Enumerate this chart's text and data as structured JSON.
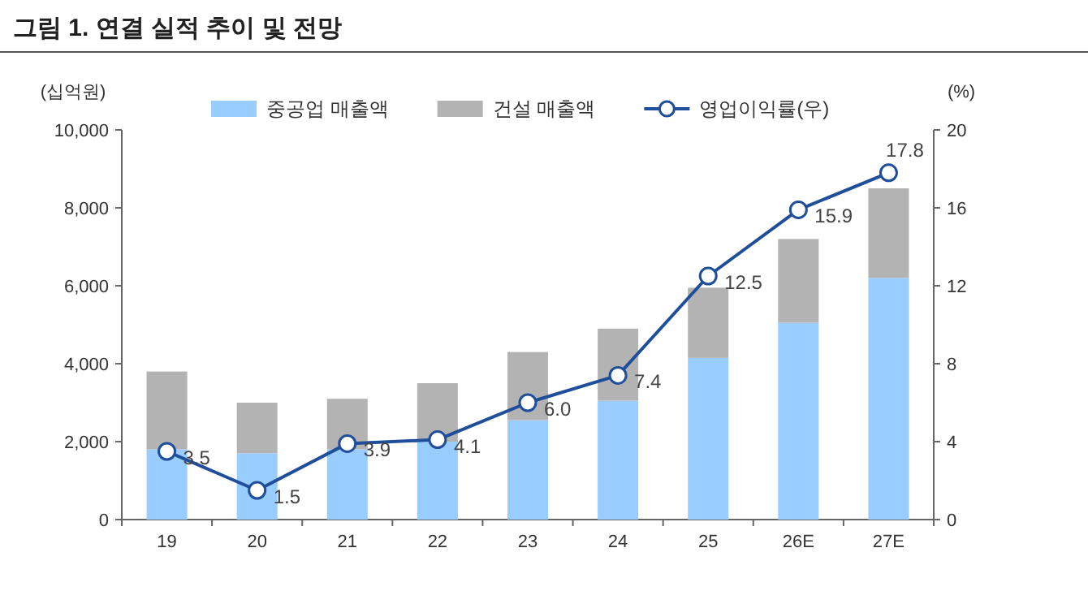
{
  "chart_data": {
    "type": "bar",
    "title": "그림 1. 연결 실적 추이 및 전망",
    "ylabel": "(십억원)",
    "y2label": "(%)",
    "categories": [
      "19",
      "20",
      "21",
      "22",
      "23",
      "24",
      "25",
      "26E",
      "27E"
    ],
    "stacked": true,
    "legend": "top",
    "series": [
      {
        "name": "중공업 매출액",
        "color": "#99ccff",
        "values": [
          1800,
          1700,
          1800,
          2000,
          2550,
          3050,
          4150,
          5050,
          6200
        ]
      },
      {
        "name": "건설 매출액",
        "color": "#b3b3b3",
        "values": [
          2000,
          1300,
          1300,
          1500,
          1750,
          1850,
          1800,
          2150,
          2300
        ]
      },
      {
        "name": "영업이익률(우)",
        "type": "line",
        "axis": "y2",
        "color": "#1f4e9a",
        "marker": "circle",
        "values": [
          3.5,
          1.5,
          3.9,
          4.1,
          6.0,
          7.4,
          12.5,
          15.9,
          17.8
        ],
        "value_labels": [
          "3.5",
          "1.5",
          "3.9",
          "4.1",
          "6.0",
          "7.4",
          "12.5",
          "15.9",
          "17.8"
        ]
      }
    ],
    "ylim": [
      0,
      10000
    ],
    "yticks": [
      {
        "value": 0,
        "label": "0"
      },
      {
        "value": 2000,
        "label": "2,000"
      },
      {
        "value": 4000,
        "label": "4,000"
      },
      {
        "value": 6000,
        "label": "6,000"
      },
      {
        "value": 8000,
        "label": "8,000"
      },
      {
        "value": 10000,
        "label": "10,000"
      }
    ],
    "y2lim": [
      0,
      20
    ],
    "y2ticks": [
      0,
      4,
      8,
      12,
      16,
      20
    ]
  }
}
